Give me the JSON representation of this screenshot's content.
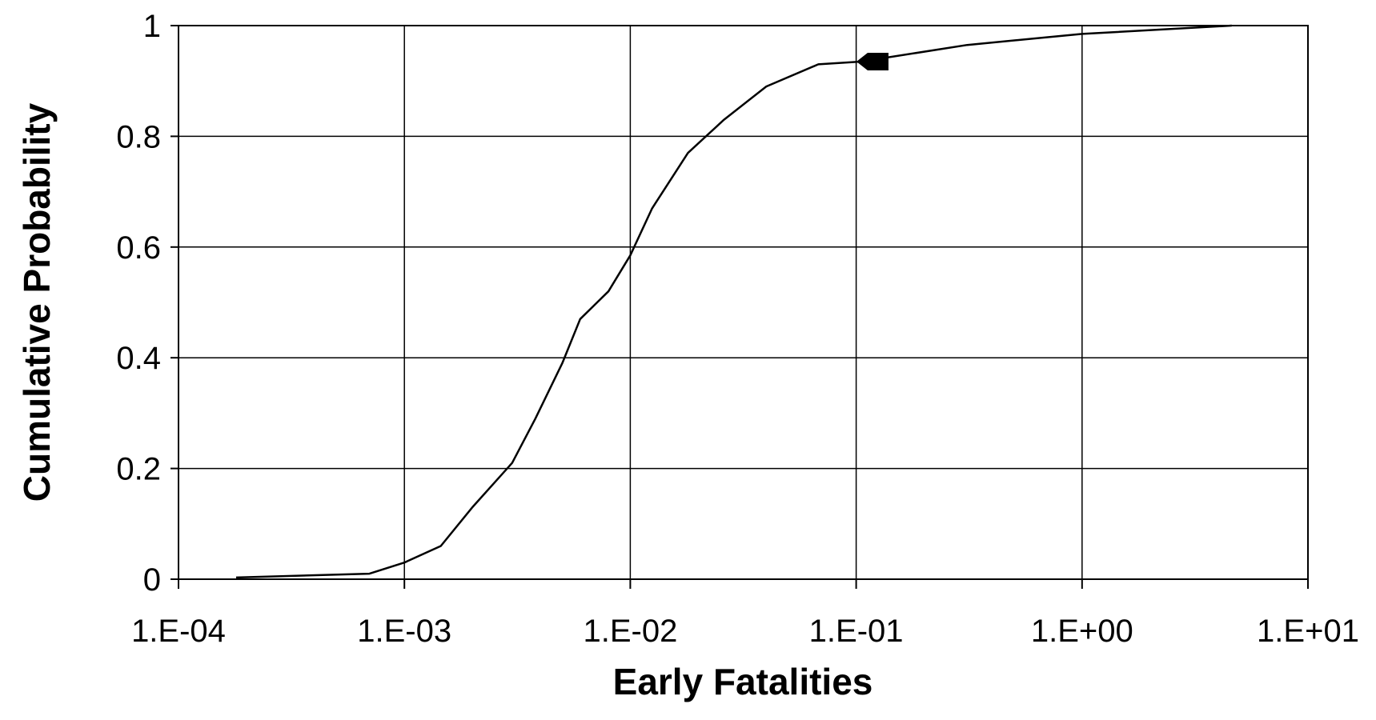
{
  "chart_data": {
    "type": "line",
    "xlabel": "Early Fatalities",
    "ylabel": "Cumulative Probability",
    "xscale": "log",
    "grid": true,
    "xlim": [
      0.0001,
      10
    ],
    "ylim": [
      0,
      1
    ],
    "xticks": [
      {
        "value": 0.0001,
        "label": "1.E-04"
      },
      {
        "value": 0.001,
        "label": "1.E-03"
      },
      {
        "value": 0.01,
        "label": "1.E-02"
      },
      {
        "value": 0.1,
        "label": "1.E-01"
      },
      {
        "value": 1,
        "label": "1.E+00"
      },
      {
        "value": 10,
        "label": "1.E+01"
      }
    ],
    "yticks": [
      0,
      0.2,
      0.4,
      0.6,
      0.8,
      1
    ],
    "series": [
      {
        "color": "#000000",
        "x": [
          0.00018,
          0.0007,
          0.001,
          0.00145,
          0.002,
          0.003,
          0.0038,
          0.005,
          0.006,
          0.008,
          0.01,
          0.0125,
          0.018,
          0.026,
          0.04,
          0.068,
          0.105,
          0.31,
          1,
          4.6
        ],
        "values": [
          0.003,
          0.01,
          0.03,
          0.06,
          0.13,
          0.21,
          0.29,
          0.39,
          0.47,
          0.52,
          0.585,
          0.67,
          0.77,
          0.83,
          0.89,
          0.93,
          0.935,
          0.965,
          0.985,
          1.0
        ]
      }
    ],
    "marker": {
      "x": 0.12,
      "y": 0.935,
      "color": "#000000"
    }
  }
}
